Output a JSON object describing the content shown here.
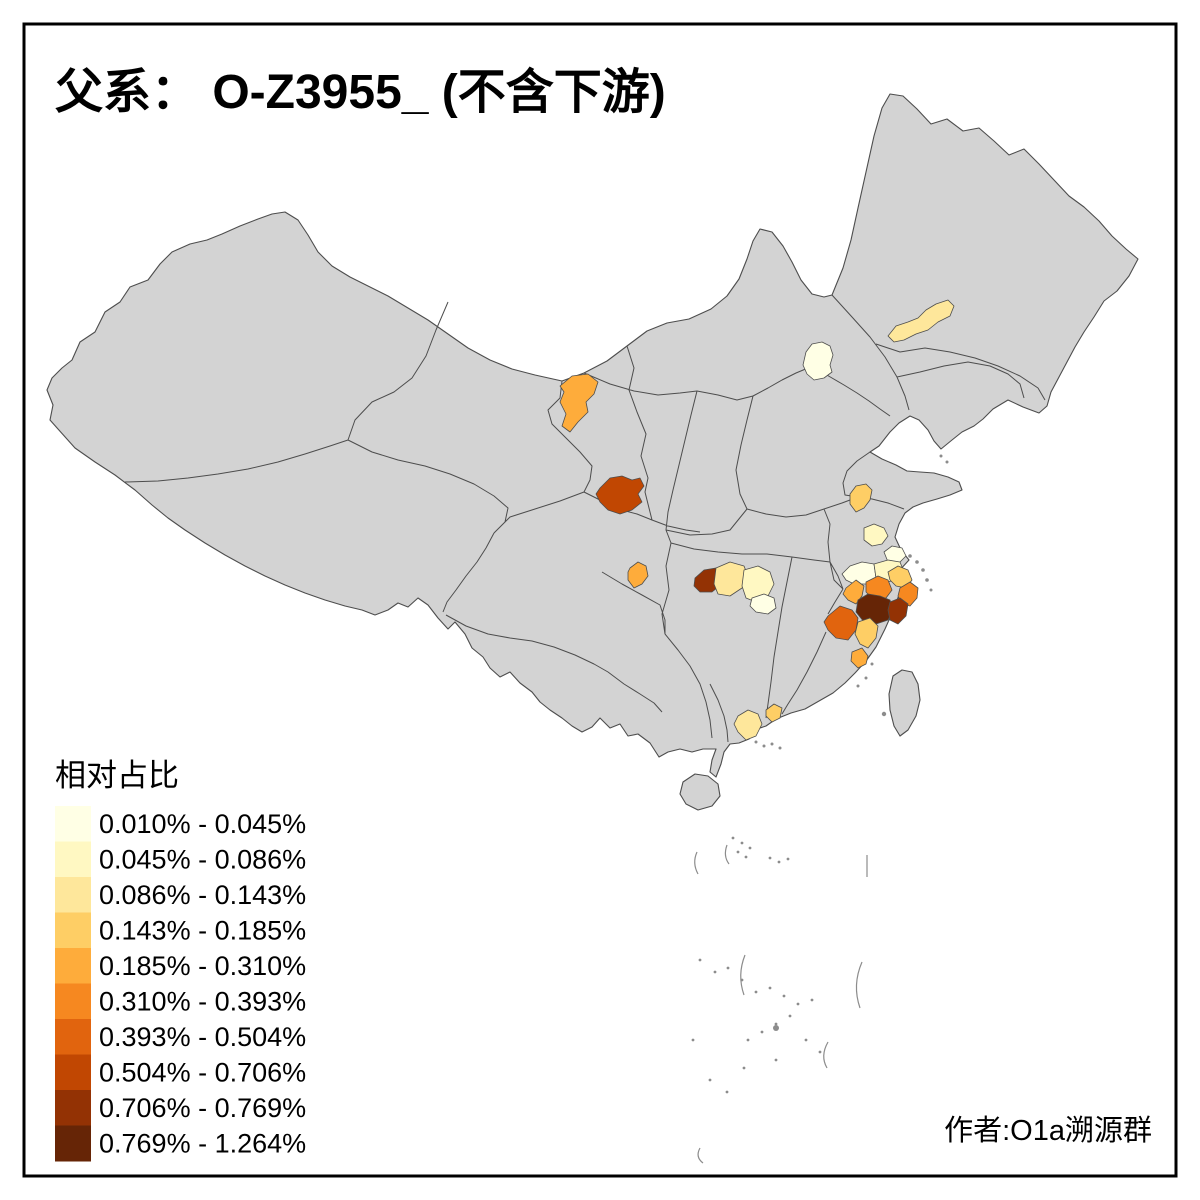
{
  "title": {
    "text": "父系： O-Z3955_ (不含下游)"
  },
  "credit": {
    "text": "作者:O1a溯源群"
  },
  "legend": {
    "title": "相对占比",
    "classes": [
      {
        "label": "0.010% - 0.045%",
        "color": "#FFFFE5"
      },
      {
        "label": "0.045% - 0.086%",
        "color": "#FFF8C2"
      },
      {
        "label": "0.086% - 0.143%",
        "color": "#FEE79B"
      },
      {
        "label": "0.143% - 0.185%",
        "color": "#FECE65"
      },
      {
        "label": "0.185% - 0.310%",
        "color": "#FEAC3B"
      },
      {
        "label": "0.310% - 0.393%",
        "color": "#F68820"
      },
      {
        "label": "0.393% - 0.504%",
        "color": "#E1640E"
      },
      {
        "label": "0.504% - 0.706%",
        "color": "#C14702"
      },
      {
        "label": "0.706% - 0.769%",
        "color": "#933204"
      },
      {
        "label": "0.769% - 1.264%",
        "color": "#662506"
      }
    ]
  },
  "map": {
    "type": "choropleth",
    "base_fill": "#D3D3D3",
    "border_color": "#4D4D4D",
    "sea_color": "#FFFFFF",
    "regions": [
      {
        "name": "beijing",
        "class": 0
      },
      {
        "name": "liaoning-west",
        "class": 2
      },
      {
        "name": "gansu-wuwei",
        "class": 4
      },
      {
        "name": "gansu-south",
        "class": 7
      },
      {
        "name": "sichuan-north",
        "class": 4
      },
      {
        "name": "hubei-northwest",
        "class": 8
      },
      {
        "name": "hubei-north",
        "class": 2
      },
      {
        "name": "hubei-central",
        "class": 1
      },
      {
        "name": "hubei-south-cream",
        "class": 0
      },
      {
        "name": "jiangsu-central",
        "class": 3
      },
      {
        "name": "jiangsu-south",
        "class": 1
      },
      {
        "name": "shanghai-area",
        "class": 0
      },
      {
        "name": "zhejiang-huzhou",
        "class": 0
      },
      {
        "name": "zhejiang-jiaxing",
        "class": 1
      },
      {
        "name": "zhejiang-north-coast",
        "class": 3
      },
      {
        "name": "zhejiang-ningbo",
        "class": 5
      },
      {
        "name": "zhejiang-hangzhou",
        "class": 4
      },
      {
        "name": "zhejiang-shaoxing",
        "class": 5
      },
      {
        "name": "zhejiang-center",
        "class": 9
      },
      {
        "name": "zhejiang-east",
        "class": 8
      },
      {
        "name": "zhejiang-southwest",
        "class": 6
      },
      {
        "name": "zhejiang-south",
        "class": 3
      },
      {
        "name": "fujian-northeast",
        "class": 4
      },
      {
        "name": "guangdong-west",
        "class": 2
      },
      {
        "name": "guangdong-east",
        "class": 3
      }
    ]
  }
}
